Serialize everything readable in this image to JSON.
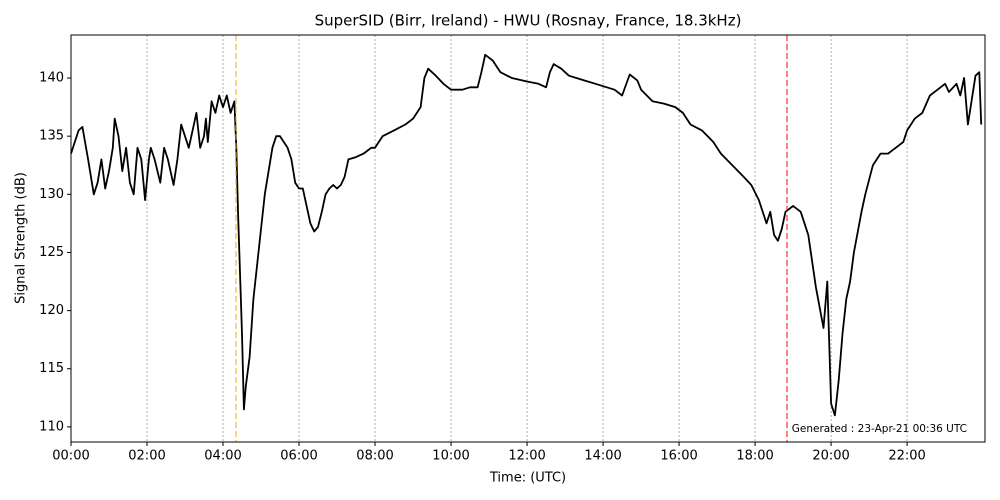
{
  "chart_data": {
    "type": "line",
    "title": "SuperSID (Birr, Ireland) - HWU (Rosnay, France, 18.3kHz)",
    "xlabel": "Time: (UTC)",
    "ylabel": "Signal Strength (dB)",
    "annotation": "Generated : 23-Apr-21 00:36 UTC",
    "xlim": [
      0,
      24.05
    ],
    "ylim": [
      108.7,
      143.7
    ],
    "xticks": [
      {
        "value": 0,
        "label": "00:00"
      },
      {
        "value": 2,
        "label": "02:00"
      },
      {
        "value": 4,
        "label": "04:00"
      },
      {
        "value": 6,
        "label": "06:00"
      },
      {
        "value": 8,
        "label": "08:00"
      },
      {
        "value": 10,
        "label": "10:00"
      },
      {
        "value": 12,
        "label": "12:00"
      },
      {
        "value": 14,
        "label": "14:00"
      },
      {
        "value": 16,
        "label": "16:00"
      },
      {
        "value": 18,
        "label": "18:00"
      },
      {
        "value": 20,
        "label": "20:00"
      },
      {
        "value": 22,
        "label": "22:00"
      }
    ],
    "yticks": [
      110,
      115,
      120,
      125,
      130,
      135,
      140
    ],
    "xgrid": true,
    "vlines": [
      {
        "x": 4.34,
        "color": "#ffa500"
      },
      {
        "x": 18.84,
        "color": "#ff0000"
      }
    ],
    "x": [
      0.0,
      0.2,
      0.3,
      0.45,
      0.55,
      0.6,
      0.7,
      0.8,
      0.9,
      1.0,
      1.1,
      1.15,
      1.25,
      1.35,
      1.45,
      1.55,
      1.65,
      1.75,
      1.85,
      1.95,
      2.05,
      2.1,
      2.2,
      2.35,
      2.45,
      2.55,
      2.7,
      2.8,
      2.9,
      3.0,
      3.1,
      3.2,
      3.3,
      3.4,
      3.5,
      3.55,
      3.6,
      3.7,
      3.8,
      3.9,
      4.0,
      4.1,
      4.2,
      4.3,
      4.35,
      4.4,
      4.5,
      4.55,
      4.6,
      4.7,
      4.8,
      4.9,
      5.0,
      5.1,
      5.2,
      5.3,
      5.4,
      5.5,
      5.6,
      5.7,
      5.8,
      5.9,
      6.0,
      6.1,
      6.2,
      6.3,
      6.4,
      6.5,
      6.6,
      6.7,
      6.8,
      6.9,
      7.0,
      7.1,
      7.2,
      7.3,
      7.5,
      7.7,
      7.9,
      8.0,
      8.2,
      8.5,
      8.8,
      9.0,
      9.2,
      9.3,
      9.4,
      9.6,
      9.8,
      10.0,
      10.3,
      10.5,
      10.7,
      10.8,
      10.9,
      11.1,
      11.3,
      11.6,
      12.0,
      12.3,
      12.5,
      12.6,
      12.7,
      12.9,
      13.1,
      13.5,
      13.8,
      14.0,
      14.3,
      14.5,
      14.7,
      14.9,
      15.0,
      15.3,
      15.6,
      15.9,
      16.1,
      16.3,
      16.6,
      16.9,
      17.1,
      17.4,
      17.7,
      17.9,
      18.1,
      18.3,
      18.4,
      18.5,
      18.6,
      18.7,
      18.8,
      19.0,
      19.2,
      19.4,
      19.6,
      19.8,
      19.9,
      20.0,
      20.1,
      20.2,
      20.3,
      20.4,
      20.5,
      20.6,
      20.8,
      20.9,
      21.1,
      21.3,
      21.5,
      21.7,
      21.9,
      22.0,
      22.2,
      22.4,
      22.6,
      22.8,
      23.0,
      23.1,
      23.3,
      23.4,
      23.5,
      23.6,
      23.8,
      23.9,
      23.95
    ],
    "series": [
      {
        "name": "HWU",
        "color": "#000000",
        "values": [
          133.5,
          135.5,
          135.8,
          133,
          131,
          130,
          131,
          133,
          130.5,
          132,
          134,
          136.5,
          135,
          132,
          134,
          131,
          130,
          134,
          133,
          129.5,
          133,
          134,
          133,
          131,
          134,
          133,
          130.8,
          133,
          136,
          135,
          134,
          135.5,
          137,
          134,
          135,
          136.5,
          134.5,
          138,
          137,
          138.5,
          137.5,
          138.5,
          137,
          138,
          134,
          128,
          118,
          111.5,
          113.5,
          116,
          121,
          124,
          127,
          130,
          132,
          134,
          135,
          135,
          134.5,
          134,
          133,
          131,
          130.5,
          130.5,
          129,
          127.5,
          126.8,
          127.2,
          128.5,
          130,
          130.5,
          130.8,
          130.5,
          130.8,
          131.5,
          133,
          133.2,
          133.5,
          134,
          134,
          135,
          135.5,
          136,
          136.5,
          137.5,
          140,
          140.8,
          140.2,
          139.5,
          139,
          139,
          139.2,
          139.2,
          140.5,
          142,
          141.5,
          140.5,
          140,
          139.7,
          139.5,
          139.2,
          140.5,
          141.2,
          140.8,
          140.2,
          139.8,
          139.5,
          139.3,
          139,
          138.5,
          140.3,
          139.8,
          139,
          138,
          137.8,
          137.5,
          137,
          136,
          135.5,
          134.5,
          133.5,
          132.5,
          131.5,
          130.8,
          129.5,
          127.5,
          128.5,
          126.5,
          126,
          127,
          128.5,
          129,
          128.5,
          126.5,
          122,
          118.5,
          122.5,
          112,
          111,
          114,
          118,
          121,
          122.5,
          125,
          128.5,
          130,
          132.5,
          133.5,
          133.5,
          134,
          134.5,
          135.5,
          136.5,
          137,
          138.5,
          139,
          139.5,
          138.8,
          139.5,
          138.5,
          140,
          136,
          140.2,
          140.5,
          136
        ]
      }
    ]
  }
}
